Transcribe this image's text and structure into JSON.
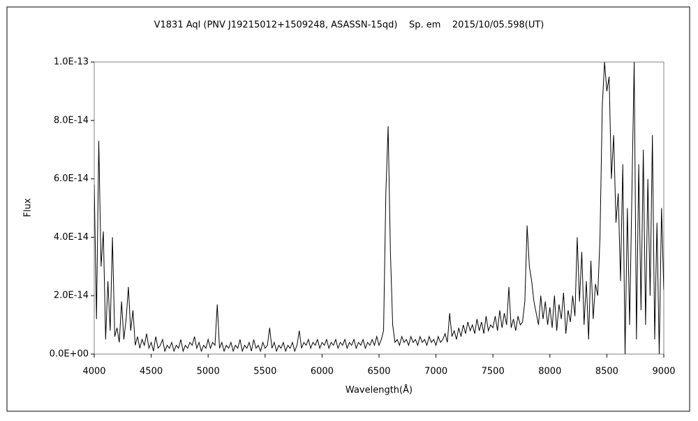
{
  "chart_data": {
    "type": "line",
    "title": "V1831 Aql (PNV J19215012+1509248, ASASSN-15qd)    Sp. em    2015/10/05.598(UT)",
    "xlabel": "Wavelength(Å)",
    "ylabel": "Flux",
    "color": "#000000",
    "xlim": [
      4000,
      9000
    ],
    "xticks": [
      4000,
      4500,
      5000,
      5500,
      6000,
      6500,
      7000,
      7500,
      8000,
      8500,
      9000
    ],
    "ylim": [
      0,
      1e-13
    ],
    "yticks": [
      {
        "value": 0,
        "label": "0.0E+00"
      },
      {
        "value": 2e-14,
        "label": "2.0E-14"
      },
      {
        "value": 4e-14,
        "label": "4.0E-14"
      },
      {
        "value": 6e-14,
        "label": "6.0E-14"
      },
      {
        "value": 8e-14,
        "label": "8.0E-14"
      },
      {
        "value": 1e-13,
        "label": "1.0E-13"
      }
    ],
    "x": [
      4000,
      4020,
      4040,
      4060,
      4080,
      4100,
      4120,
      4140,
      4160,
      4180,
      4200,
      4220,
      4240,
      4260,
      4280,
      4300,
      4320,
      4340,
      4360,
      4380,
      4400,
      4420,
      4440,
      4460,
      4480,
      4500,
      4520,
      4540,
      4560,
      4580,
      4600,
      4620,
      4640,
      4660,
      4680,
      4700,
      4720,
      4740,
      4760,
      4780,
      4800,
      4820,
      4840,
      4860,
      4880,
      4900,
      4920,
      4940,
      4960,
      4980,
      5000,
      5020,
      5040,
      5060,
      5080,
      5100,
      5120,
      5140,
      5160,
      5180,
      5200,
      5220,
      5240,
      5260,
      5280,
      5300,
      5320,
      5340,
      5360,
      5380,
      5400,
      5420,
      5440,
      5460,
      5480,
      5500,
      5520,
      5540,
      5560,
      5580,
      5600,
      5620,
      5640,
      5660,
      5680,
      5700,
      5720,
      5740,
      5760,
      5780,
      5800,
      5820,
      5840,
      5860,
      5880,
      5900,
      5920,
      5940,
      5960,
      5980,
      6000,
      6020,
      6040,
      6060,
      6080,
      6100,
      6120,
      6140,
      6160,
      6180,
      6200,
      6220,
      6240,
      6260,
      6280,
      6300,
      6320,
      6340,
      6360,
      6380,
      6400,
      6420,
      6440,
      6460,
      6480,
      6500,
      6520,
      6540,
      6560,
      6580,
      6600,
      6620,
      6640,
      6660,
      6680,
      6700,
      6720,
      6740,
      6760,
      6780,
      6800,
      6820,
      6840,
      6860,
      6880,
      6900,
      6920,
      6940,
      6960,
      6980,
      7000,
      7020,
      7040,
      7060,
      7080,
      7100,
      7120,
      7140,
      7160,
      7180,
      7200,
      7220,
      7240,
      7260,
      7280,
      7300,
      7320,
      7340,
      7360,
      7380,
      7400,
      7420,
      7440,
      7460,
      7480,
      7500,
      7520,
      7540,
      7560,
      7580,
      7600,
      7620,
      7640,
      7660,
      7680,
      7700,
      7720,
      7740,
      7760,
      7780,
      7800,
      7820,
      7840,
      7860,
      7880,
      7900,
      7920,
      7940,
      7960,
      7980,
      8000,
      8020,
      8040,
      8060,
      8080,
      8100,
      8120,
      8140,
      8160,
      8180,
      8200,
      8220,
      8240,
      8260,
      8280,
      8300,
      8320,
      8340,
      8360,
      8380,
      8400,
      8420,
      8440,
      8460,
      8480,
      8500,
      8520,
      8540,
      8560,
      8580,
      8600,
      8620,
      8640,
      8660,
      8680,
      8700,
      8720,
      8740,
      8760,
      8780,
      8800,
      8820,
      8840,
      8860,
      8880,
      8900,
      8920,
      8940,
      8960,
      8980,
      9000
    ],
    "values": [
      5.8e-14,
      1.2e-14,
      7.3e-14,
      3e-14,
      4.2e-14,
      5e-15,
      2.5e-14,
      8e-15,
      4e-14,
      6e-15,
      9e-15,
      4e-15,
      1.8e-14,
      5e-15,
      1.2e-14,
      2.3e-14,
      8e-15,
      1.5e-14,
      3e-15,
      6e-15,
      2e-15,
      5e-15,
      3e-15,
      7e-15,
      2e-15,
      4e-15,
      1e-15,
      6e-15,
      2e-15,
      3e-15,
      5e-15,
      1e-15,
      3e-15,
      2e-15,
      4e-15,
      1e-15,
      3e-15,
      2e-15,
      5e-15,
      1e-15,
      3e-15,
      2e-15,
      4e-15,
      3e-15,
      6e-15,
      2e-15,
      4e-15,
      1e-15,
      3e-15,
      2e-15,
      5e-15,
      2e-15,
      4e-15,
      3e-15,
      1.7e-14,
      2e-15,
      4e-15,
      1e-15,
      3e-15,
      2e-15,
      4e-15,
      1e-15,
      3e-15,
      2e-15,
      5e-15,
      1e-15,
      3e-15,
      2e-15,
      4e-15,
      1e-15,
      5e-15,
      2e-15,
      3e-15,
      1e-15,
      4e-15,
      2e-15,
      3e-15,
      9e-15,
      2e-15,
      4e-15,
      1e-15,
      3e-15,
      2e-15,
      4e-15,
      1e-15,
      3e-15,
      2e-15,
      4e-15,
      1e-15,
      3e-15,
      8e-15,
      2e-15,
      4e-15,
      3e-15,
      5e-15,
      2e-15,
      4e-15,
      3e-15,
      5e-15,
      2e-15,
      4e-15,
      3e-15,
      5e-15,
      2e-15,
      4e-15,
      3e-15,
      5e-15,
      2e-15,
      4e-15,
      3e-15,
      5e-15,
      2e-15,
      4e-15,
      3e-15,
      5e-15,
      2e-15,
      4e-15,
      3e-15,
      5e-15,
      2e-15,
      4e-15,
      3e-15,
      5e-15,
      3e-15,
      6e-15,
      3e-15,
      5e-15,
      8e-15,
      5.5e-14,
      7.8e-14,
      3.5e-14,
      1e-14,
      4e-15,
      5e-15,
      3e-15,
      6e-15,
      4e-15,
      5e-15,
      3e-15,
      6e-15,
      4e-15,
      5e-15,
      3e-15,
      6e-15,
      4e-15,
      5e-15,
      3e-15,
      6e-15,
      4e-15,
      5e-15,
      3e-15,
      6e-15,
      4e-15,
      5e-15,
      7e-15,
      4e-15,
      1.4e-14,
      6e-15,
      8e-15,
      5e-15,
      9e-15,
      6e-15,
      1e-14,
      7e-15,
      1.1e-14,
      8e-15,
      1e-14,
      7e-15,
      1.2e-14,
      8e-15,
      1.1e-14,
      7e-15,
      1.3e-14,
      8e-15,
      1e-14,
      9e-15,
      1.3e-14,
      8e-15,
      1.5e-14,
      9e-15,
      1.4e-14,
      1e-14,
      2.3e-14,
      9e-15,
      1.2e-14,
      8e-15,
      1.3e-14,
      1e-14,
      1.1e-14,
      1.8e-14,
      4.4e-14,
      3e-14,
      2.5e-14,
      1.8e-14,
      1.4e-14,
      1e-14,
      2e-14,
      1.2e-14,
      1.8e-14,
      1e-14,
      1.6e-14,
      9e-15,
      2e-14,
      8e-15,
      1.7e-14,
      1.2e-14,
      2.1e-14,
      7e-15,
      1.5e-14,
      1.1e-14,
      2e-14,
      1.3e-14,
      4e-14,
      1.8e-14,
      3.5e-14,
      1e-14,
      2.5e-14,
      5e-15,
      3.2e-14,
      1.2e-14,
      2.4e-14,
      2e-14,
      4e-14,
      8.5e-14,
      1e-13,
      9e-14,
      9.5e-14,
      6e-14,
      7.5e-14,
      4.5e-14,
      5.5e-14,
      2.5e-14,
      6.5e-14,
      0,
      5e-14,
      1e-14,
      5.5e-14,
      1e-13,
      5e-15,
      6.5e-14,
      1.5e-14,
      7e-14,
      1e-14,
      6e-14,
      2e-14,
      7.5e-14,
      5e-15,
      4.5e-14,
      0,
      5e-14,
      2.2e-14
    ]
  }
}
